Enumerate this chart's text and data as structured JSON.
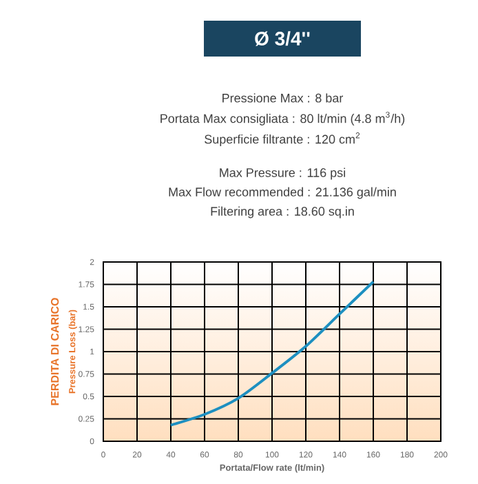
{
  "chart_data": {
    "type": "line",
    "title": "Ø 3/4''",
    "annotations": [
      "Pressione Max : 8 bar",
      "Portata Max consigliata : 80 lt/min (4.8 m$^{3}$/h)",
      "Superficie filtrante : 120 cm$^{2}$",
      "Max Pressure : 116  psi",
      "Max Flow recommended : 21.136 gal/min",
      "Filtering area : 18.60 sq.in"
    ],
    "xlabel": "Portata/Flow rate (lt/min)",
    "ylabel": [
      "PERDITA DI CARICO",
      "Pressure Loss (bar)"
    ],
    "x": [
      40,
      60,
      80,
      100,
      120,
      140,
      160
    ],
    "series": [
      {
        "color": "#1d8fc0",
        "values": [
          0.18,
          0.3,
          0.48,
          0.76,
          1.06,
          1.42,
          1.78
        ]
      }
    ],
    "xlim": [
      0,
      200
    ],
    "xticks": [
      0,
      20,
      40,
      60,
      80,
      100,
      120,
      140,
      160,
      180,
      200
    ],
    "ylim": [
      0,
      2
    ],
    "yticks": [
      0,
      0.25,
      0.5,
      0.75,
      1,
      1.25,
      1.5,
      1.75,
      2
    ],
    "grid": true,
    "marker": "none",
    "line_style": "solid"
  }
}
